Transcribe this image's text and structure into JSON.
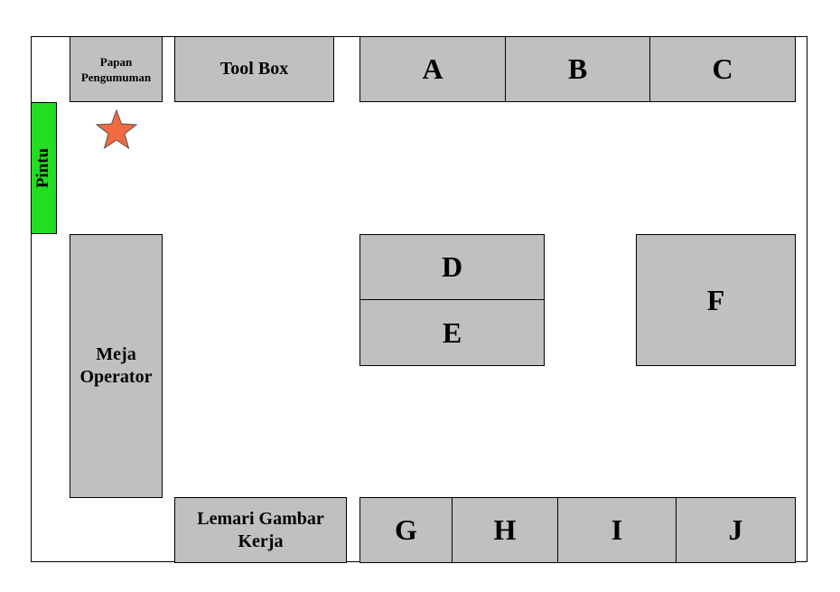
{
  "layout_title": "",
  "door": {
    "label": "Pintu",
    "color": "#22dd22"
  },
  "marker": {
    "icon": "star-icon",
    "color": "#f26a3f"
  },
  "areas": {
    "papan": "Papan Pengumuman",
    "toolbox": "Tool Box",
    "meja": "Meja Operator",
    "lemari": "Lemari Gambar Kerja"
  },
  "racks": {
    "A": "A",
    "B": "B",
    "C": "C",
    "D": "D",
    "E": "E",
    "F": "F",
    "G": "G",
    "H": "H",
    "I": "I",
    "J": "J"
  },
  "colors": {
    "fill": "#c0c0c0",
    "border": "#000000"
  }
}
